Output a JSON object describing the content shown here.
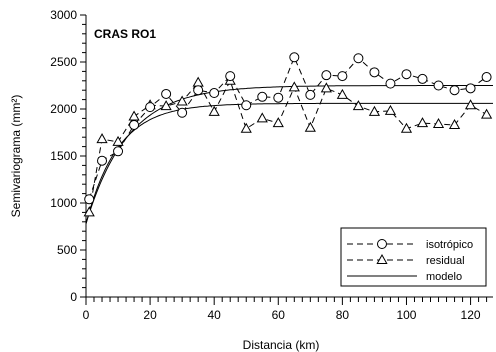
{
  "chart_data": {
    "type": "scatter",
    "panel_label": "CRAS RO1",
    "xlabel": "Distancia (km)",
    "ylabel": "Semivariograma (mm²)",
    "xlim": [
      0,
      127
    ],
    "ylim": [
      0,
      3000
    ],
    "x_ticks": [
      0,
      20,
      40,
      60,
      80,
      100,
      120
    ],
    "x_tick_labels": [
      "0",
      "20",
      "40",
      "60",
      "80",
      "100",
      "120"
    ],
    "y_ticks": [
      0,
      500,
      1000,
      1500,
      2000,
      2500,
      3000
    ],
    "y_tick_labels": [
      "0",
      "500",
      "1000",
      "1500",
      "2000",
      "2500",
      "3000"
    ],
    "x_minor_step": 2.5,
    "y_minor_step": 100,
    "grid": false,
    "legend_position": "bottom-right",
    "series": [
      {
        "name": "isotrópico",
        "style": "dashed-circle",
        "x": [
          1,
          5,
          10,
          15,
          20,
          25,
          30,
          35,
          40,
          45,
          50,
          55,
          60,
          65,
          70,
          75,
          80,
          85,
          90,
          95,
          100,
          105,
          110,
          115,
          120,
          125
        ],
        "y": [
          1040,
          1450,
          1550,
          1830,
          2020,
          2160,
          1960,
          2200,
          2170,
          2350,
          2040,
          2130,
          2120,
          2550,
          2150,
          2360,
          2350,
          2540,
          2390,
          2270,
          2370,
          2320,
          2250,
          2200,
          2220,
          2340
        ]
      },
      {
        "name": "residual",
        "style": "dashed-triangle",
        "x": [
          1,
          5,
          10,
          15,
          20,
          25,
          30,
          35,
          40,
          45,
          50,
          55,
          60,
          65,
          70,
          75,
          80,
          85,
          90,
          95,
          100,
          105,
          110,
          115,
          120,
          125
        ],
        "y": [
          900,
          1680,
          1650,
          1920,
          2040,
          2030,
          2080,
          2280,
          1970,
          2300,
          1790,
          1900,
          1850,
          2230,
          1800,
          2220,
          2150,
          2030,
          1970,
          1980,
          1790,
          1850,
          1840,
          1830,
          2040,
          1940
        ]
      },
      {
        "name": "modelo",
        "style": "solid-line",
        "curves": [
          {
            "nugget": 780,
            "sill": 2250,
            "range": 13
          },
          {
            "nugget": 780,
            "sill": 2060,
            "range": 10
          }
        ]
      }
    ]
  }
}
